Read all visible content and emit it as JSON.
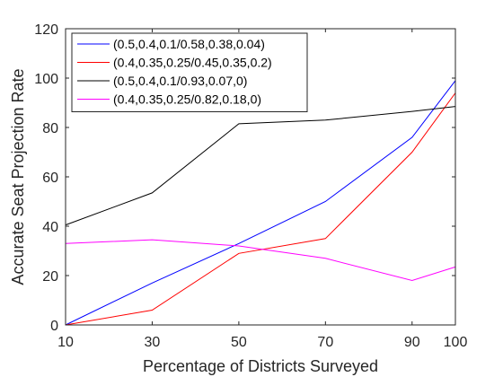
{
  "chart_data": {
    "type": "line",
    "title": "",
    "xlabel": "Percentage of Districts Surveyed",
    "ylabel": "Accurate Seat Projection Rate",
    "x": [
      10,
      30,
      50,
      70,
      90,
      100
    ],
    "xlim": [
      10,
      100
    ],
    "ylim": [
      0,
      120
    ],
    "xticks": [
      "10",
      "30",
      "50",
      "70",
      "90",
      "100"
    ],
    "yticks": [
      "0",
      "20",
      "40",
      "60",
      "80",
      "100",
      "120"
    ],
    "grid": false,
    "legend_position": "top-left",
    "series": [
      {
        "name": "(0.5,0.4,0.1/0.58,0.38,0.04)",
        "color": "#0000ff",
        "values": [
          0,
          17,
          33,
          50,
          76,
          99
        ]
      },
      {
        "name": "(0.4,0.35,0.25/0.45,0.35,0.2)",
        "color": "#ff0000",
        "values": [
          0,
          6,
          29,
          35,
          70,
          94
        ]
      },
      {
        "name": "(0.5,0.4,0.1/0.93,0.07,0)",
        "color": "#000000",
        "values": [
          40.5,
          53.5,
          81.5,
          83,
          86.5,
          88.5
        ]
      },
      {
        "name": "(0.4,0.35,0.25/0.82,0.18,0)",
        "color": "#ff00ff",
        "values": [
          33,
          34.5,
          32,
          27,
          18,
          23.5
        ]
      }
    ]
  }
}
